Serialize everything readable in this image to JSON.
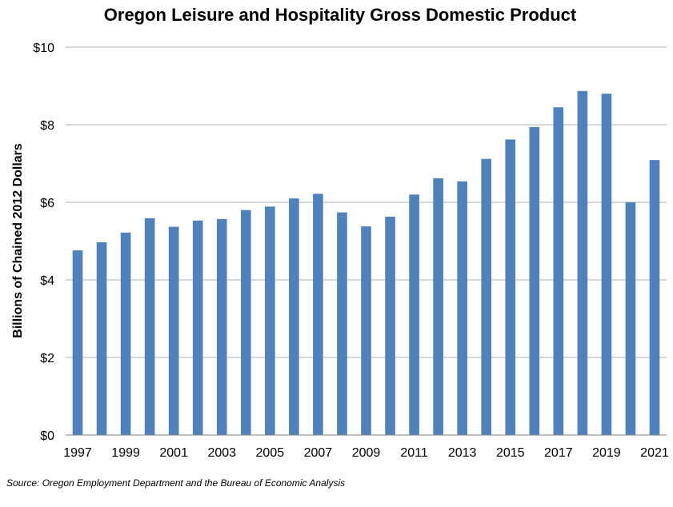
{
  "chart_data": {
    "type": "bar",
    "title": "Oregon Leisure and Hospitality Gross Domestic Product",
    "ylabel": "Billions of Chained 2012 Dollars",
    "xlabel": "",
    "source": "Source: Oregon Employment Department and the Bureau of Economic Analysis",
    "ylim": [
      0,
      10
    ],
    "y_ticks": [
      "$0",
      "$2",
      "$4",
      "$6",
      "$8",
      "$10"
    ],
    "y_tick_values": [
      0,
      2,
      4,
      6,
      8,
      10
    ],
    "grid": true,
    "legend": "none",
    "bar_color": "#4f81bd",
    "categories": [
      "1997",
      "1998",
      "1999",
      "2000",
      "2001",
      "2002",
      "2003",
      "2004",
      "2005",
      "2006",
      "2007",
      "2008",
      "2009",
      "2010",
      "2011",
      "2012",
      "2013",
      "2014",
      "2015",
      "2016",
      "2017",
      "2018",
      "2019",
      "2020",
      "2021"
    ],
    "x_tick_labels": [
      "1997",
      "1999",
      "2001",
      "2003",
      "2005",
      "2007",
      "2009",
      "2011",
      "2013",
      "2015",
      "2017",
      "2019",
      "2021"
    ],
    "values": [
      4.76,
      4.97,
      5.22,
      5.59,
      5.37,
      5.53,
      5.57,
      5.8,
      5.89,
      6.1,
      6.22,
      5.74,
      5.38,
      5.63,
      6.2,
      6.62,
      6.54,
      7.12,
      7.62,
      7.94,
      8.45,
      8.87,
      8.8,
      6.0,
      7.09
    ]
  }
}
